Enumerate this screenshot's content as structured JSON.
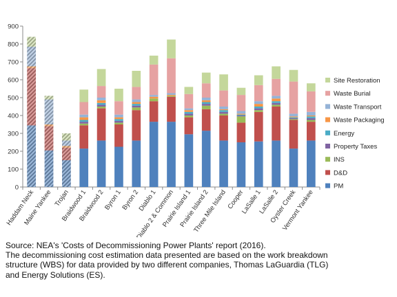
{
  "chart_data": {
    "type": "bar",
    "stacked": true,
    "title": "",
    "xlabel": "",
    "ylabel": "",
    "ylim": [
      0,
      900
    ],
    "yticks": [
      0,
      100,
      200,
      300,
      400,
      500,
      600,
      700,
      800,
      900
    ],
    "grid": false,
    "legend_position": "right",
    "categories": [
      "Haddam Neck",
      "Maine Yankee",
      "Trojan",
      "Braidwood 1",
      "Braidwood 2",
      "Byron 1",
      "Byron 2",
      "Diablo 1",
      "Diablo 2 & Common",
      "Prairie Island 1",
      "Prairie Island 2",
      "Three Mile Island",
      "Cooper",
      "LaSalle 1",
      "LaSalle 2",
      "Oyster Creek",
      "Vermont Yankee"
    ],
    "hatched_categories": [
      "Haddam Neck",
      "Maine Yankee",
      "Trojan"
    ],
    "series": [
      {
        "name": "PM",
        "color": "#4f81bd",
        "values": [
          345,
          205,
          150,
          215,
          260,
          225,
          260,
          365,
          365,
          295,
          315,
          260,
          250,
          255,
          260,
          215,
          260
        ]
      },
      {
        "name": "D&D",
        "color": "#c0504d",
        "values": [
          320,
          135,
          70,
          130,
          180,
          125,
          170,
          115,
          140,
          95,
          120,
          140,
          110,
          165,
          190,
          160,
          105
        ]
      },
      {
        "name": "INS",
        "color": "#9bbb59",
        "values": [
          0,
          0,
          0,
          10,
          10,
          10,
          15,
          15,
          5,
          10,
          20,
          10,
          35,
          10,
          10,
          5,
          10
        ]
      },
      {
        "name": "Property Taxes",
        "color": "#8064a2",
        "values": [
          0,
          0,
          0,
          10,
          10,
          10,
          10,
          0,
          0,
          10,
          10,
          10,
          5,
          10,
          10,
          5,
          10
        ]
      },
      {
        "name": "Energy",
        "color": "#4bacc6",
        "values": [
          0,
          0,
          0,
          10,
          10,
          10,
          10,
          0,
          0,
          10,
          10,
          10,
          5,
          10,
          10,
          5,
          10
        ]
      },
      {
        "name": "Waste Packaging",
        "color": "#f79646",
        "values": [
          10,
          10,
          10,
          15,
          15,
          10,
          10,
          10,
          5,
          10,
          10,
          5,
          5,
          15,
          15,
          5,
          5
        ]
      },
      {
        "name": "Waste Transport",
        "color": "#95b3d7",
        "values": [
          110,
          140,
          30,
          15,
          15,
          15,
          15,
          10,
          10,
          10,
          15,
          15,
          15,
          15,
          15,
          15,
          20
        ]
      },
      {
        "name": "Waste Burial",
        "color": "#e6a2a2",
        "values": [
          0,
          0,
          0,
          70,
          65,
          75,
          70,
          170,
          195,
          80,
          80,
          90,
          90,
          90,
          95,
          180,
          115
        ]
      },
      {
        "name": "Site Restoration",
        "color": "#c4d79b",
        "values": [
          55,
          20,
          40,
          70,
          95,
          70,
          90,
          50,
          105,
          40,
          60,
          90,
          40,
          55,
          70,
          65,
          45
        ]
      }
    ]
  },
  "caption": {
    "lines": [
      "Source: NEA's 'Costs of Decommissioning Power Plants' report (2016).",
      "The decommissioning cost estimation data presented are based on the work breakdown",
      "structure (WBS) for data provided by two different companies, Thomas LaGuardia (TLG)",
      "and Energy Solutions (ES)."
    ]
  }
}
